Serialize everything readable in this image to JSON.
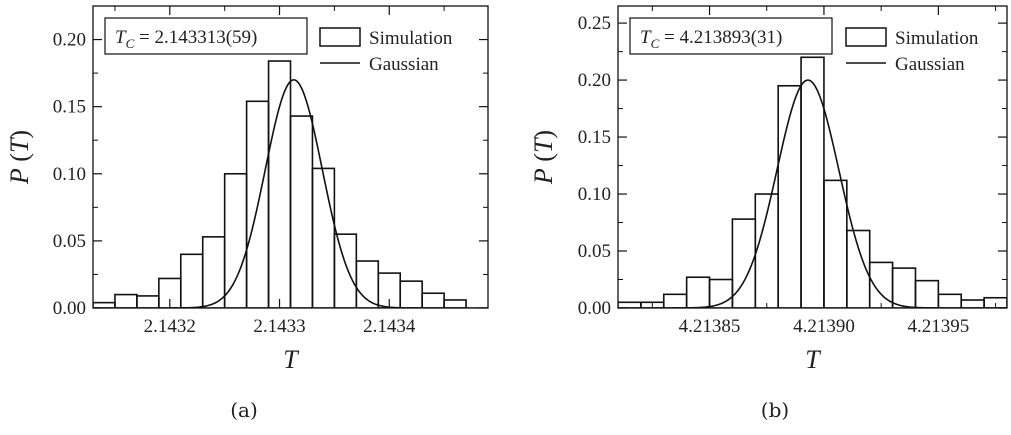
{
  "chart_data": [
    {
      "type": "bar",
      "panel_label": "(a)",
      "xlabel": "T",
      "ylabel_main": "P",
      "ylabel_arg": "T",
      "xlim": [
        2.14313,
        2.14349
      ],
      "ylim": [
        0,
        0.225
      ],
      "xticks": [
        {
          "value": 2.1432,
          "label": "2.1432"
        },
        {
          "value": 2.1433,
          "label": "2.1433"
        },
        {
          "value": 2.1434,
          "label": "2.1434"
        }
      ],
      "xminor": [
        2.14315,
        2.14325,
        2.14335,
        2.14345
      ],
      "yticks": [
        {
          "value": 0.0,
          "label": "0.00"
        },
        {
          "value": 0.05,
          "label": "0.05"
        },
        {
          "value": 0.1,
          "label": "0.10"
        },
        {
          "value": 0.15,
          "label": "0.15"
        },
        {
          "value": 0.2,
          "label": "0.20"
        }
      ],
      "annotation": {
        "sym": "T",
        "sub": "C",
        "rest": " = 2.143313(59)"
      },
      "legend": {
        "hist": "Simulation",
        "line": "Gaussian"
      },
      "bin_start": 2.14313,
      "bin_width": 2e-05,
      "hist": [
        0.004,
        0.01,
        0.009,
        0.022,
        0.04,
        0.053,
        0.1,
        0.154,
        0.184,
        0.143,
        0.104,
        0.055,
        0.035,
        0.026,
        0.02,
        0.011,
        0.006
      ],
      "gaussian": {
        "mean": 2.143313,
        "sigma": 2.6e-05,
        "peak": 0.17
      }
    },
    {
      "type": "bar",
      "panel_label": "(b)",
      "xlabel": "T",
      "ylabel_main": "P",
      "ylabel_arg": "T",
      "xlim": [
        4.21381,
        4.21398
      ],
      "ylim": [
        0,
        0.265
      ],
      "xticks": [
        {
          "value": 4.21385,
          "label": "4.21385"
        },
        {
          "value": 4.2139,
          "label": "4.21390"
        },
        {
          "value": 4.21395,
          "label": "4.21395"
        }
      ],
      "xminor": [
        4.213825,
        4.213875,
        4.213925,
        4.213975
      ],
      "yticks": [
        {
          "value": 0.0,
          "label": "0.00"
        },
        {
          "value": 0.05,
          "label": "0.05"
        },
        {
          "value": 0.1,
          "label": "0.10"
        },
        {
          "value": 0.15,
          "label": "0.15"
        },
        {
          "value": 0.2,
          "label": "0.20"
        },
        {
          "value": 0.25,
          "label": "0.25"
        }
      ],
      "annotation": {
        "sym": "T",
        "sub": "C",
        "rest": " = 4.213893(31)"
      },
      "legend": {
        "hist": "Simulation",
        "line": "Gaussian"
      },
      "bin_start": 4.21381,
      "bin_width": 1e-05,
      "hist": [
        0.005,
        0.005,
        0.012,
        0.027,
        0.025,
        0.078,
        0.1,
        0.195,
        0.22,
        0.112,
        0.068,
        0.04,
        0.035,
        0.024,
        0.012,
        0.007,
        0.009
      ],
      "gaussian": {
        "mean": 4.213893,
        "sigma": 1.35e-05,
        "peak": 0.2
      }
    }
  ]
}
